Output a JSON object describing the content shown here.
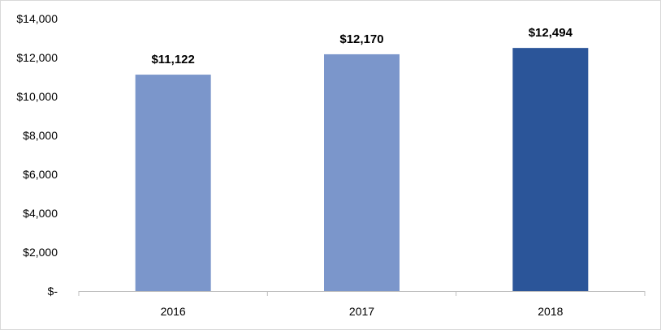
{
  "chart_data": {
    "type": "bar",
    "categories": [
      "2016",
      "2017",
      "2018"
    ],
    "values": [
      11122,
      12170,
      12494
    ],
    "data_labels": [
      "$11,122",
      "$12,170",
      "$12,494"
    ],
    "title": "",
    "xlabel": "",
    "ylabel": "",
    "ylim": [
      0,
      14000
    ],
    "y_ticks": [
      0,
      2000,
      4000,
      6000,
      8000,
      10000,
      12000,
      14000
    ],
    "y_tick_labels": [
      "$-",
      "$2,000",
      "$4,000",
      "$6,000",
      "$8,000",
      "$10,000",
      "$12,000",
      "$14,000"
    ],
    "grid": false,
    "legend": "none",
    "bar_colors": [
      "#7b96cb",
      "#7b96cb",
      "#2b5599"
    ]
  }
}
